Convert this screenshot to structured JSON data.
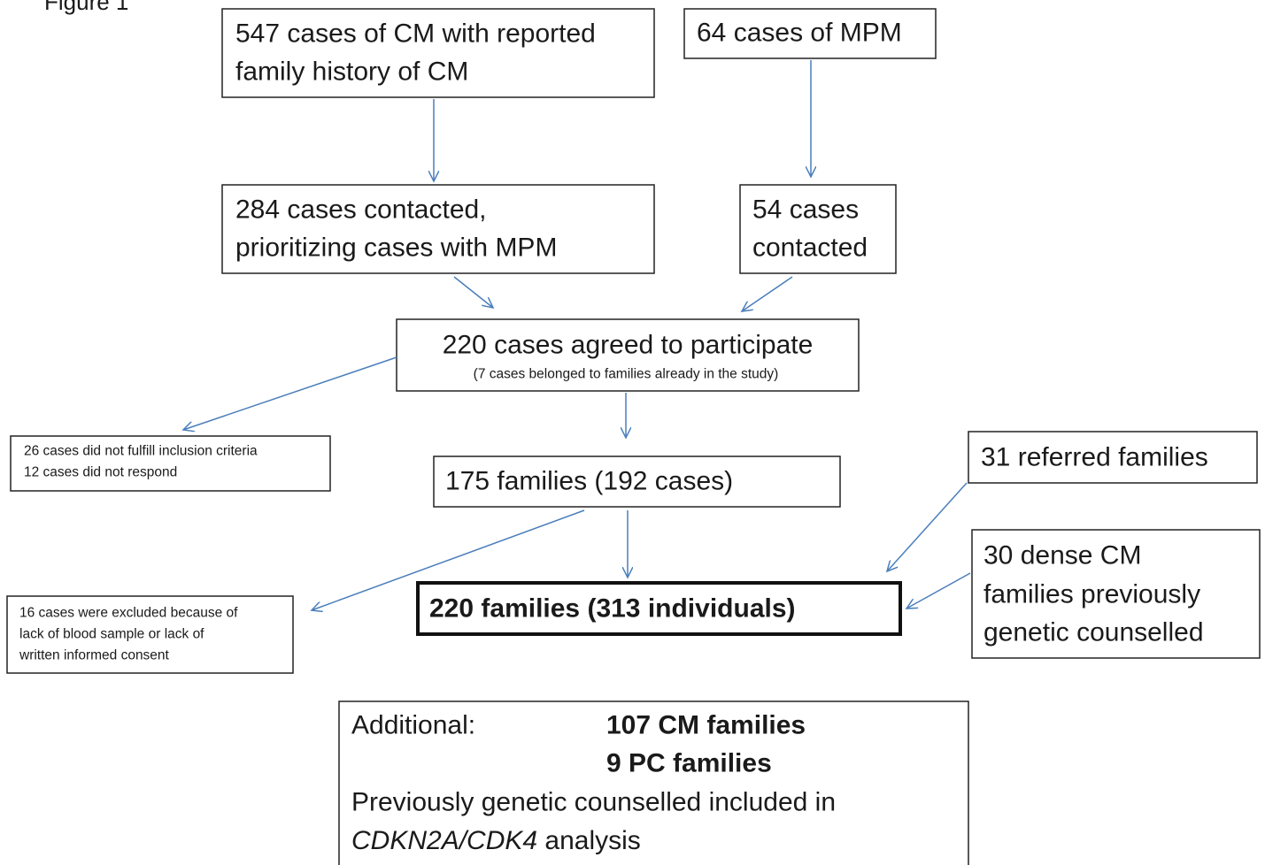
{
  "figure_label": "Figure 1",
  "nodes": [
    {
      "lines": [
        "547 cases of CM with reported",
        "family history of CM"
      ]
    },
    {
      "lines": [
        "64 cases of MPM"
      ]
    },
    {
      "lines": [
        "284 cases contacted,",
        "prioritizing cases with MPM"
      ]
    },
    {
      "lines": [
        "54 cases",
        "contacted"
      ]
    },
    {
      "lines": [
        "220 cases agreed to participate"
      ],
      "note": "(7 cases belonged to families already in the study)"
    },
    {
      "lines": [
        "26 cases did not fulfill inclusion criteria",
        "12 cases did not respond"
      ]
    },
    {
      "lines": [
        "175 families (192 cases)"
      ]
    },
    {
      "lines": [
        "31 referred families"
      ]
    },
    {
      "lines": [
        "16 cases were excluded because of",
        "lack of blood sample  or lack of",
        "written informed consent"
      ]
    },
    {
      "lines": [
        "220 families (313 individuals)"
      ]
    },
    {
      "lines": [
        "30 dense CM",
        "families previously",
        "genetic counselled"
      ]
    }
  ],
  "additional": {
    "label": "Additional:",
    "items": [
      "107 CM families",
      "9 PC families"
    ],
    "note": "Previously genetic counselled included in",
    "genes": "CDKN2A/CDK4",
    "note_end": " analysis"
  }
}
